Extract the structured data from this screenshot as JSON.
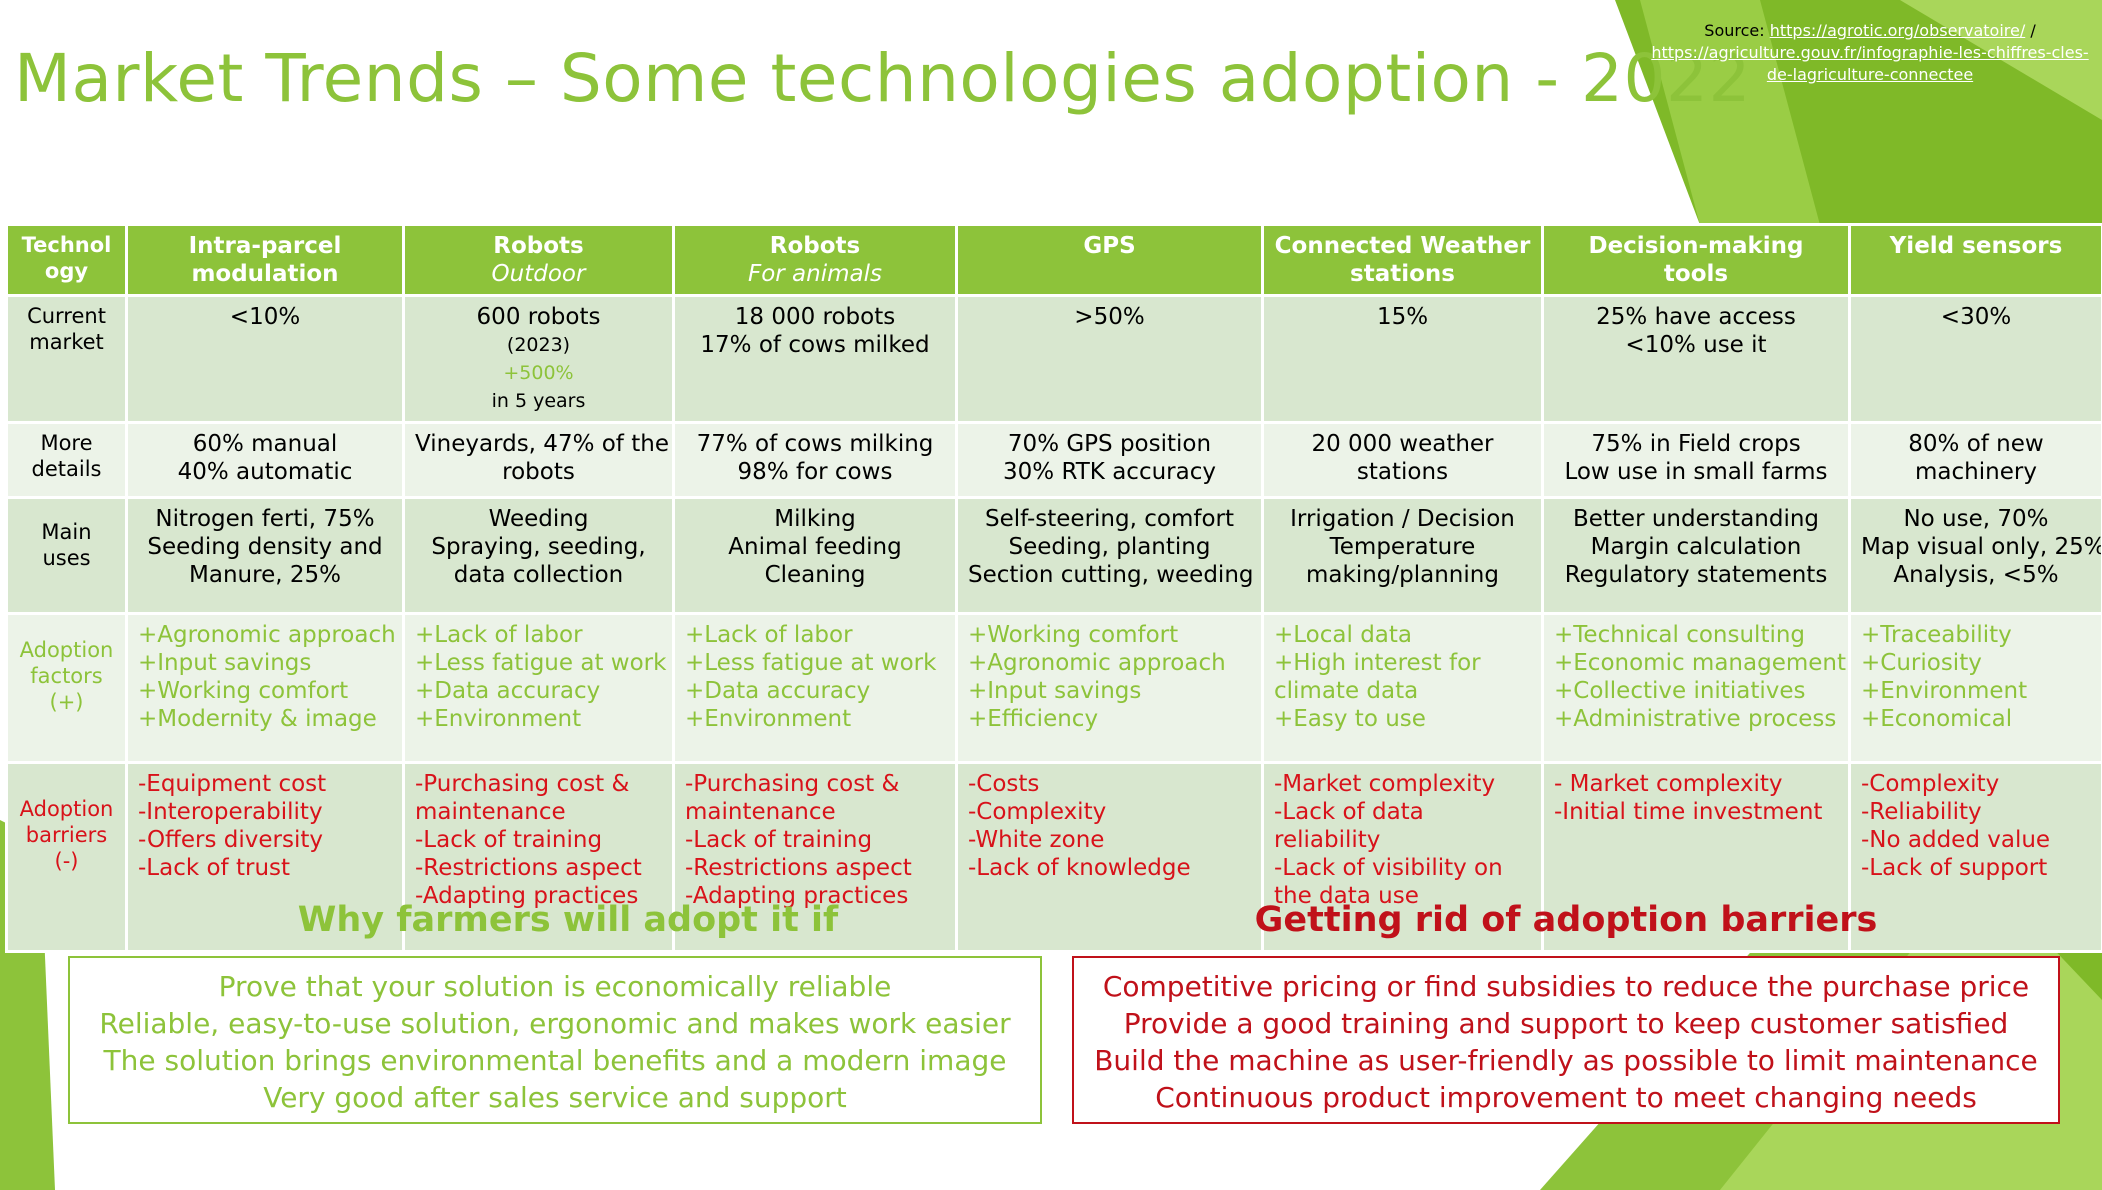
{
  "slide": {
    "title": "Market Trends – Some technologies adoption - 2022",
    "source_label": "Source:",
    "source_links": [
      "https://agrotic.org/observatoire/",
      "https://agriculture.gouv.fr/infographie-les-chiffres-cles-de-lagriculture-connectee"
    ],
    "source_separator": "/"
  },
  "table": {
    "headers": [
      {
        "label": "Technology",
        "sub": ""
      },
      {
        "label": "Intra-parcel modulation",
        "sub": ""
      },
      {
        "label": "Robots",
        "sub": "Outdoor"
      },
      {
        "label": "Robots",
        "sub": "For animals"
      },
      {
        "label": "GPS",
        "sub": ""
      },
      {
        "label": "Connected Weather stations",
        "sub": ""
      },
      {
        "label": "Decision-making tools",
        "sub": ""
      },
      {
        "label": "Yield sensors",
        "sub": ""
      }
    ],
    "rows": [
      {
        "label": "Current market",
        "cells": [
          [
            "<10%"
          ],
          [
            "600 robots",
            "(2023)",
            "+500%",
            "in 5 years"
          ],
          [
            "18 000 robots",
            "17% of cows milked"
          ],
          [
            ">50%"
          ],
          [
            "15%"
          ],
          [
            "25% have access",
            "<10% use it"
          ],
          [
            "<30%"
          ]
        ]
      },
      {
        "label": "More details",
        "cells": [
          [
            "60% manual",
            "40% automatic"
          ],
          [
            "Vineyards, 47% of the",
            "robots"
          ],
          [
            "77% of cows milking",
            "98% for cows"
          ],
          [
            "70% GPS position",
            "30% RTK accuracy"
          ],
          [
            "20 000 weather",
            "stations"
          ],
          [
            "75% in Field crops",
            "Low use in small farms"
          ],
          [
            "80% of new",
            "machinery"
          ]
        ]
      },
      {
        "label": "Main uses",
        "cells": [
          [
            "Nitrogen ferti, 75%",
            "Seeding density and",
            "Manure, 25%"
          ],
          [
            "Weeding",
            "Spraying, seeding,",
            "data collection"
          ],
          [
            "Milking",
            "Animal feeding",
            "Cleaning"
          ],
          [
            "Self-steering, comfort",
            "Seeding, planting",
            "Section cutting, weeding"
          ],
          [
            "Irrigation / Decision",
            "Temperature",
            "making/planning"
          ],
          [
            "Better understanding",
            "Margin calculation",
            "Regulatory statements"
          ],
          [
            "No use, 70%",
            "Map visual only, 25%",
            "Analysis, <5%"
          ]
        ]
      },
      {
        "label": "Adoption factors (+)",
        "cells": [
          [
            "+Agronomic approach",
            "+Input savings",
            "+Working comfort",
            "+Modernity & image"
          ],
          [
            "+Lack of labor",
            "+Less fatigue at work",
            "+Data accuracy",
            "+Environment"
          ],
          [
            "+Lack of labor",
            "+Less fatigue at work",
            "+Data accuracy",
            "+Environment"
          ],
          [
            "+Working comfort",
            "+Agronomic approach",
            "+Input savings",
            "+Efficiency"
          ],
          [
            "+Local data",
            "+High interest for",
            "climate data",
            "+Easy to use"
          ],
          [
            "+Technical consulting",
            "+Economic management",
            "+Collective initiatives",
            "+Administrative process"
          ],
          [
            "+Traceability",
            "+Curiosity",
            "+Environment",
            "+Economical"
          ]
        ]
      },
      {
        "label": "Adoption barriers (-)",
        "cells": [
          [
            "-Equipment cost",
            "-Interoperability",
            "-Offers diversity",
            "-Lack of trust"
          ],
          [
            "-Purchasing cost &",
            "maintenance",
            "-Lack of training",
            "-Restrictions aspect",
            "-Adapting practices"
          ],
          [
            "-Purchasing cost &",
            "maintenance",
            "-Lack of training",
            "-Restrictions aspect",
            "-Adapting practices"
          ],
          [
            "-Costs",
            "-Complexity",
            "-White zone",
            "-Lack of knowledge"
          ],
          [
            "-Market complexity",
            "-Lack of data",
            "reliability",
            "-Lack of visibility on",
            "the data use"
          ],
          [
            "- Market complexity",
            "-Initial time investment"
          ],
          [
            "-Complexity",
            "-Reliability",
            "-No added value",
            "-Lack of support"
          ]
        ]
      }
    ]
  },
  "why_adopt": {
    "heading": "Why farmers will adopt it if",
    "lines": [
      "Prove that your solution is economically reliable",
      "Reliable, easy-to-use solution, ergonomic and makes work easier",
      "The solution brings environmental benefits and a modern image",
      "Very good after sales service and support"
    ]
  },
  "barriers_removal": {
    "heading": "Getting rid of adoption barriers",
    "lines": [
      "Competitive pricing or find subsidies to reduce the purchase price",
      "Provide a good training and support to keep customer satisfied",
      "Build the machine as user-friendly as possible to limit maintenance",
      "Continuous product improvement to meet changing needs"
    ]
  },
  "colors": {
    "accent_green": "#8dc33a",
    "barrier_red": "#d8121a",
    "heading_red": "#c0111a",
    "row_dark": "#d8e7cf",
    "row_light": "#ecf3e8"
  }
}
